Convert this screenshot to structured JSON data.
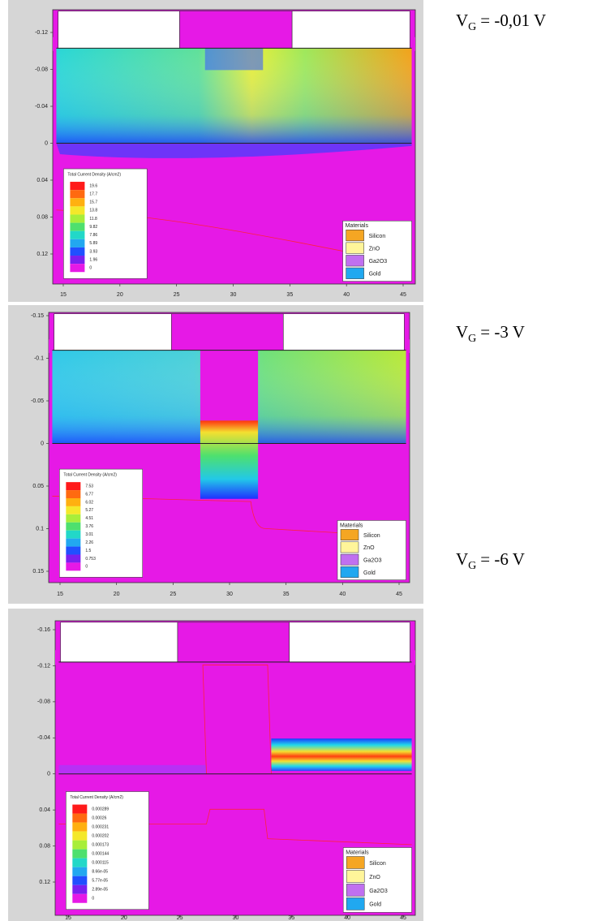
{
  "panels": [
    {
      "label": {
        "main": "V",
        "sub": "G",
        "rest": "= -0,01 V"
      },
      "y_ticks": [
        "-0.12",
        "-0.08",
        "-0.04",
        "0",
        "0.04",
        "0.08",
        "0.12"
      ],
      "x_ticks": [
        "15",
        "20",
        "25",
        "30",
        "35",
        "40",
        "45"
      ],
      "legend": {
        "title": "Total Current Density (A/cm2)",
        "values": [
          "19.6",
          "17.7",
          "15.7",
          "13.8",
          "11.8",
          "9.82",
          "7.86",
          "5.89",
          "3.93",
          "1.96",
          "0"
        ]
      },
      "materials": {
        "title": "Materials",
        "items": [
          "Silicon",
          "ZnO",
          "Ga2O3",
          "Gold"
        ]
      }
    },
    {
      "label": {
        "main": "V",
        "sub": "G",
        "rest": "= -3 V"
      },
      "y_ticks": [
        "-0.15",
        "-0.1",
        "-0.05",
        "0",
        "0.05",
        "0.1",
        "0.15"
      ],
      "x_ticks": [
        "15",
        "20",
        "25",
        "30",
        "35",
        "40",
        "45"
      ],
      "legend": {
        "title": "Total Current Density (A/cm2)",
        "values": [
          "7.53",
          "6.77",
          "6.02",
          "5.27",
          "4.51",
          "3.76",
          "3.01",
          "2.26",
          "1.5",
          "0.753",
          "0"
        ]
      },
      "materials": {
        "title": "Materials",
        "items": [
          "Silicon",
          "ZnO",
          "Ga2O3",
          "Gold"
        ]
      }
    },
    {
      "label": {
        "main": "V",
        "sub": "G",
        "rest": "= -6 V"
      },
      "y_ticks": [
        "-0.16",
        "-0.12",
        "-0.08",
        "-0.04",
        "0",
        "0.04",
        "0.08",
        "0.12"
      ],
      "x_ticks": [
        "15",
        "20",
        "25",
        "30",
        "35",
        "40",
        "45"
      ],
      "legend": {
        "title": "Total Current Density (A/cm2)",
        "values": [
          "0.000289",
          "0.00026",
          "0.000231",
          "0.000202",
          "0.000173",
          "0.000144",
          "0.000115",
          "8.66e-05",
          "5.77e-05",
          "2.89e-05",
          "0"
        ]
      },
      "materials": {
        "title": "Materials",
        "items": [
          "Silicon",
          "ZnO",
          "Ga2O3",
          "Gold"
        ]
      }
    }
  ]
}
